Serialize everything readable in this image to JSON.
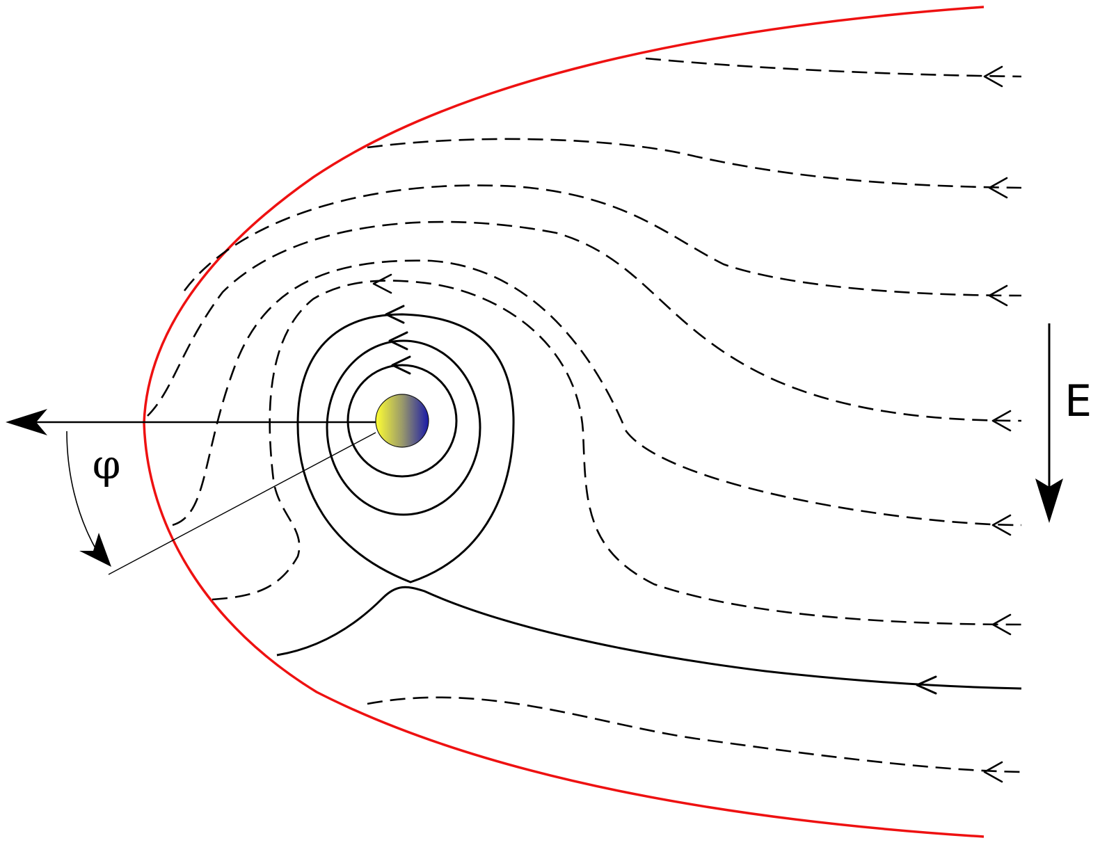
{
  "labels": {
    "field_label": "E",
    "angle_label": "φ"
  },
  "colors": {
    "boundary": "#ee1111",
    "lines": "#000000",
    "planet_left": "#ffff33",
    "planet_right": "#1a1aa8"
  }
}
